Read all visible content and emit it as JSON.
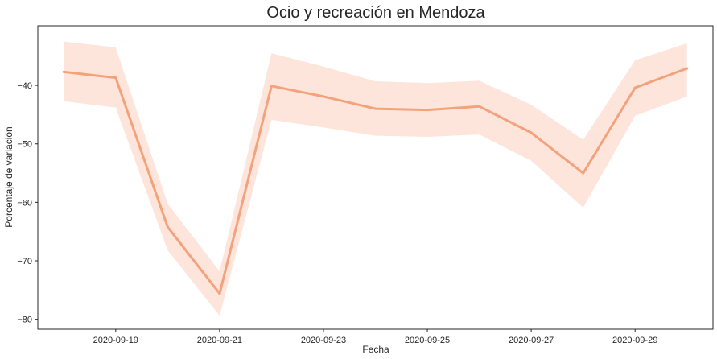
{
  "chart_data": {
    "type": "line",
    "title": "Ocio y recreación en Mendoza",
    "xlabel": "Fecha",
    "ylabel": "Porcentaje de variación",
    "x": [
      "2020-09-18",
      "2020-09-19",
      "2020-09-20",
      "2020-09-21",
      "2020-09-22",
      "2020-09-23",
      "2020-09-24",
      "2020-09-25",
      "2020-09-26",
      "2020-09-27",
      "2020-09-28",
      "2020-09-29",
      "2020-09-30"
    ],
    "series": [
      {
        "values": [
          -37.7,
          -38.7,
          -64.2,
          -75.6,
          -40.1,
          -41.9,
          -44.0,
          -44.2,
          -43.6,
          -48.1,
          -55.0,
          -40.4,
          -37.1
        ],
        "ci_upper": [
          -32.5,
          -33.5,
          -60.2,
          -71.8,
          -34.5,
          -36.8,
          -39.3,
          -39.6,
          -39.2,
          -43.3,
          -49.3,
          -35.7,
          -32.8
        ],
        "ci_lower": [
          -42.7,
          -43.8,
          -68.2,
          -79.4,
          -45.9,
          -47.2,
          -48.6,
          -48.8,
          -48.4,
          -52.9,
          -60.9,
          -45.2,
          -41.9
        ],
        "color": "#f4a27b",
        "band_color": "#fde5dc"
      }
    ],
    "xticks": [
      "2020-09-19",
      "2020-09-21",
      "2020-09-23",
      "2020-09-25",
      "2020-09-27",
      "2020-09-29"
    ],
    "yticks": [
      -40,
      -50,
      -60,
      -70,
      -80
    ],
    "ytick_labels": [
      "−40",
      "−50",
      "−60",
      "−70",
      "−80"
    ],
    "xlim": [
      "2020-09-17T12:00",
      "2020-09-30T12:00"
    ],
    "ylim": [
      -81.7,
      -29.8
    ],
    "grid": false,
    "legend": "none"
  }
}
